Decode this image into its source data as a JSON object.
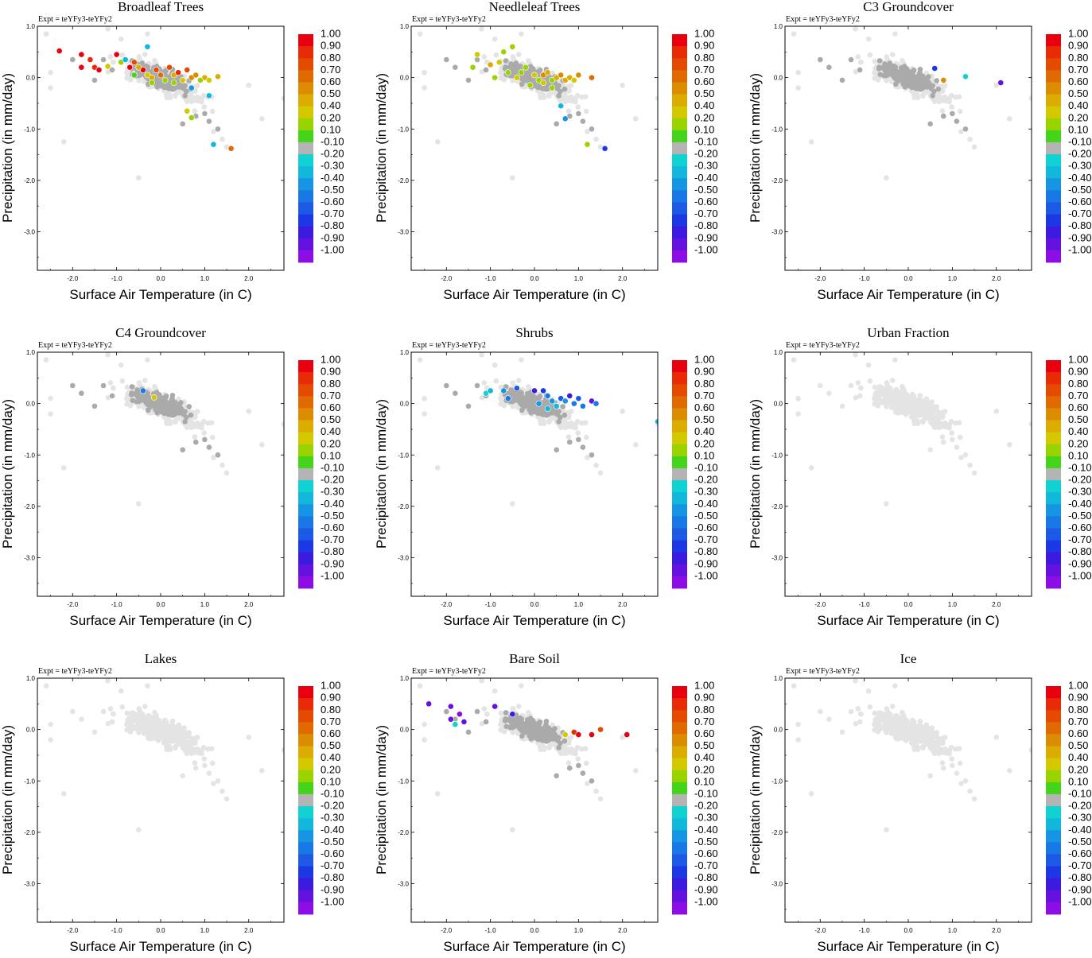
{
  "figure": {
    "expt_label": "Expt = teYFy3-teYFy2",
    "xlabel": "Surface Air Temperature (in C)",
    "ylabel": "Precipitation (in mm/day)",
    "xlim": [
      -2.8,
      2.8
    ],
    "ylim": [
      -3.75,
      1.0
    ],
    "xticks": [
      -2.0,
      -1.0,
      0.0,
      1.0,
      2.0
    ],
    "yticks": [
      1.0,
      0.0,
      -1.0,
      -2.0,
      -3.0
    ],
    "xtick_labels": [
      "-2.0",
      "-1.0",
      "0.0",
      "1.0",
      "2.0"
    ],
    "ytick_labels": [
      "1.0",
      "0.0",
      "-1.0",
      "-2.0",
      "-3.0"
    ]
  },
  "colorbar": {
    "labels": [
      "1.00",
      "0.90",
      "0.80",
      "0.70",
      "0.60",
      "0.50",
      "0.40",
      "0.20",
      "0.10",
      "-0.10",
      "-0.20",
      "-0.30",
      "-0.40",
      "-0.50",
      "-0.60",
      "-0.70",
      "-0.80",
      "-0.90",
      "-1.00"
    ],
    "colors": [
      "#e8000e",
      "#e82a07",
      "#e44a00",
      "#e06a00",
      "#dc8c00",
      "#dcac00",
      "#d4c800",
      "#9ad400",
      "#44d41a",
      "#b4b4b4",
      "#10d2d2",
      "#12b8dc",
      "#1696e2",
      "#1878e6",
      "#1c5ae6",
      "#1c38e4",
      "#3c1ae0",
      "#6412e0",
      "#8c0ee4"
    ]
  },
  "colors": {
    "background_point": "#e4e4e4",
    "mid_point": "#aaaaaa",
    "neutral_bin": "#b4b4b4"
  },
  "chart_data": [
    {
      "type": "scatter",
      "title": "Broadleaf Trees",
      "xlabel": "Surface Air Temperature (in C)",
      "ylabel": "Precipitation (in mm/day)",
      "xlim": [
        -2.8,
        2.8
      ],
      "ylim": [
        -3.75,
        1.0
      ],
      "highlighted": [
        {
          "x": -2.3,
          "y": 0.52,
          "v": 1.0
        },
        {
          "x": -1.8,
          "y": 0.45,
          "v": 1.0
        },
        {
          "x": -1.8,
          "y": 0.2,
          "v": 1.0
        },
        {
          "x": -1.6,
          "y": 0.35,
          "v": 0.9
        },
        {
          "x": -1.5,
          "y": 0.2,
          "v": 0.85
        },
        {
          "x": -1.4,
          "y": 0.15,
          "v": 1.0
        },
        {
          "x": -1.2,
          "y": 0.22,
          "v": 0.3
        },
        {
          "x": -1.0,
          "y": 0.45,
          "v": 1.0
        },
        {
          "x": -0.9,
          "y": 0.3,
          "v": 0.15
        },
        {
          "x": -0.7,
          "y": 0.2,
          "v": 1.0
        },
        {
          "x": -0.6,
          "y": 0.3,
          "v": 0.8
        },
        {
          "x": -0.4,
          "y": 0.15,
          "v": 1.0
        },
        {
          "x": -0.3,
          "y": 0.05,
          "v": 0.4
        },
        {
          "x": -0.2,
          "y": 0.0,
          "v": 0.5
        },
        {
          "x": -0.1,
          "y": 0.15,
          "v": 0.75
        },
        {
          "x": 0.0,
          "y": 0.05,
          "v": 0.65
        },
        {
          "x": 0.1,
          "y": -0.05,
          "v": 0.15
        },
        {
          "x": 0.2,
          "y": 0.2,
          "v": 0.8
        },
        {
          "x": 0.3,
          "y": 0.05,
          "v": 0.45
        },
        {
          "x": 0.4,
          "y": 0.1,
          "v": 0.85
        },
        {
          "x": 0.5,
          "y": -0.05,
          "v": 0.25
        },
        {
          "x": 0.6,
          "y": 0.15,
          "v": 0.75
        },
        {
          "x": 0.7,
          "y": 0.0,
          "v": 0.55
        },
        {
          "x": 0.8,
          "y": 0.05,
          "v": 0.6
        },
        {
          "x": 1.0,
          "y": 0.0,
          "v": 0.5
        },
        {
          "x": 1.1,
          "y": -0.05,
          "v": 0.3
        },
        {
          "x": 1.3,
          "y": 0.02,
          "v": 0.45
        },
        {
          "x": -0.5,
          "y": 0.2,
          "v": 0.5
        },
        {
          "x": -0.2,
          "y": -0.1,
          "v": 0.15
        },
        {
          "x": 0.3,
          "y": -0.1,
          "v": 0.2
        },
        {
          "x": -0.3,
          "y": 0.6,
          "v": -0.3
        },
        {
          "x": -0.8,
          "y": 0.35,
          "v": -0.25
        },
        {
          "x": 0.7,
          "y": -0.2,
          "v": -0.4
        },
        {
          "x": 1.1,
          "y": -0.35,
          "v": -0.3
        },
        {
          "x": 0.6,
          "y": -0.65,
          "v": 0.25
        },
        {
          "x": 0.7,
          "y": -0.78,
          "v": 0.15
        },
        {
          "x": 1.2,
          "y": -1.3,
          "v": -0.25
        },
        {
          "x": 1.6,
          "y": -1.38,
          "v": 0.65
        },
        {
          "x": -0.6,
          "y": 0.05,
          "v": 0.1
        },
        {
          "x": 0.9,
          "y": -0.05,
          "v": 0.12
        }
      ]
    },
    {
      "type": "scatter",
      "title": "Needleleaf Trees",
      "xlabel": "Surface Air Temperature (in C)",
      "ylabel": "Precipitation (in mm/day)",
      "xlim": [
        -2.8,
        2.8
      ],
      "ylim": [
        -3.75,
        1.0
      ],
      "highlighted": [
        {
          "x": -1.3,
          "y": 0.45,
          "v": 0.4
        },
        {
          "x": -1.4,
          "y": 0.2,
          "v": 0.15
        },
        {
          "x": -1.0,
          "y": 0.25,
          "v": 0.5
        },
        {
          "x": -0.8,
          "y": 0.3,
          "v": 0.35
        },
        {
          "x": -0.6,
          "y": 0.1,
          "v": 0.15
        },
        {
          "x": -0.4,
          "y": 0.0,
          "v": 0.3
        },
        {
          "x": -0.3,
          "y": 0.1,
          "v": 0.12
        },
        {
          "x": -0.2,
          "y": 0.2,
          "v": 0.2
        },
        {
          "x": 0.0,
          "y": 0.05,
          "v": 0.4
        },
        {
          "x": 0.1,
          "y": -0.05,
          "v": 0.15
        },
        {
          "x": 0.2,
          "y": 0.05,
          "v": 0.55
        },
        {
          "x": 0.3,
          "y": 0.1,
          "v": 0.45
        },
        {
          "x": 0.4,
          "y": -0.05,
          "v": 0.15
        },
        {
          "x": 0.5,
          "y": 0.0,
          "v": 0.5
        },
        {
          "x": 0.6,
          "y": 0.05,
          "v": 0.55
        },
        {
          "x": 0.7,
          "y": -0.05,
          "v": 0.45
        },
        {
          "x": 0.8,
          "y": 0.0,
          "v": 0.5
        },
        {
          "x": 0.9,
          "y": -0.05,
          "v": 0.4
        },
        {
          "x": 1.0,
          "y": 0.05,
          "v": 0.55
        },
        {
          "x": 1.3,
          "y": 0.0,
          "v": 0.65
        },
        {
          "x": -0.5,
          "y": 0.6,
          "v": 0.15
        },
        {
          "x": -0.7,
          "y": 0.5,
          "v": 0.2
        },
        {
          "x": -0.1,
          "y": -0.15,
          "v": 0.12
        },
        {
          "x": 0.4,
          "y": -0.2,
          "v": 0.15
        },
        {
          "x": 0.6,
          "y": -0.55,
          "v": -0.25
        },
        {
          "x": 0.7,
          "y": -0.8,
          "v": -0.4
        },
        {
          "x": 1.2,
          "y": -1.3,
          "v": 0.12
        },
        {
          "x": 1.6,
          "y": -1.38,
          "v": -0.7
        },
        {
          "x": -0.9,
          "y": 0.0,
          "v": 0.2
        },
        {
          "x": 0.2,
          "y": -0.1,
          "v": 0.3
        }
      ]
    },
    {
      "type": "scatter",
      "title": "C3 Groundcover",
      "xlabel": "Surface Air Temperature (in C)",
      "ylabel": "Precipitation (in mm/day)",
      "xlim": [
        -2.8,
        2.8
      ],
      "ylim": [
        -3.75,
        1.0
      ],
      "highlighted": [
        {
          "x": 0.6,
          "y": 0.18,
          "v": -0.7
        },
        {
          "x": 0.8,
          "y": -0.05,
          "v": 0.6
        },
        {
          "x": 1.3,
          "y": 0.02,
          "v": -0.2
        },
        {
          "x": 2.1,
          "y": -0.1,
          "v": -0.9
        }
      ]
    },
    {
      "type": "scatter",
      "title": "C4 Groundcover",
      "xlabel": "Surface Air Temperature (in C)",
      "ylabel": "Precipitation (in mm/day)",
      "xlim": [
        -2.8,
        2.8
      ],
      "ylim": [
        -3.75,
        1.0
      ],
      "highlighted": [
        {
          "x": -0.4,
          "y": 0.25,
          "v": -0.5
        },
        {
          "x": -0.15,
          "y": 0.12,
          "v": 0.3
        }
      ]
    },
    {
      "type": "scatter",
      "title": "Shrubs",
      "xlabel": "Surface Air Temperature (in C)",
      "ylabel": "Precipitation (in mm/day)",
      "xlim": [
        -2.8,
        2.8
      ],
      "ylim": [
        -3.75,
        1.0
      ],
      "highlighted": [
        {
          "x": -1.1,
          "y": 0.2,
          "v": -0.2
        },
        {
          "x": -1.0,
          "y": 0.25,
          "v": -0.3
        },
        {
          "x": -0.7,
          "y": 0.25,
          "v": -0.4
        },
        {
          "x": -0.6,
          "y": 0.1,
          "v": -0.5
        },
        {
          "x": 0.0,
          "y": 0.25,
          "v": -0.75
        },
        {
          "x": 0.2,
          "y": 0.25,
          "v": -0.65
        },
        {
          "x": 0.3,
          "y": 0.15,
          "v": -0.5
        },
        {
          "x": 0.4,
          "y": 0.05,
          "v": -0.35
        },
        {
          "x": 0.6,
          "y": 0.1,
          "v": -0.55
        },
        {
          "x": 0.7,
          "y": 0.05,
          "v": -0.4
        },
        {
          "x": 0.8,
          "y": 0.15,
          "v": -0.8
        },
        {
          "x": 0.9,
          "y": 0.0,
          "v": -0.45
        },
        {
          "x": 1.0,
          "y": 0.1,
          "v": -0.6
        },
        {
          "x": 1.3,
          "y": 0.05,
          "v": -0.85
        },
        {
          "x": 1.4,
          "y": 0.0,
          "v": -0.5
        },
        {
          "x": 0.5,
          "y": -0.05,
          "v": -0.3
        },
        {
          "x": 0.3,
          "y": -0.1,
          "v": -0.25
        },
        {
          "x": -0.4,
          "y": 0.3,
          "v": -0.6
        },
        {
          "x": 0.1,
          "y": 0.0,
          "v": -0.35
        },
        {
          "x": 1.1,
          "y": -0.05,
          "v": -0.45
        },
        {
          "x": 2.8,
          "y": -0.35,
          "v": -0.3
        }
      ]
    },
    {
      "type": "scatter",
      "title": "Urban Fraction",
      "xlabel": "Surface Air Temperature (in C)",
      "ylabel": "Precipitation (in mm/day)",
      "xlim": [
        -2.8,
        2.8
      ],
      "ylim": [
        -3.75,
        1.0
      ],
      "highlighted": []
    },
    {
      "type": "scatter",
      "title": "Lakes",
      "xlabel": "Surface Air Temperature (in C)",
      "ylabel": "Precipitation (in mm/day)",
      "xlim": [
        -2.8,
        2.8
      ],
      "ylim": [
        -3.75,
        1.0
      ],
      "highlighted": []
    },
    {
      "type": "scatter",
      "title": "Bare Soil",
      "xlabel": "Surface Air Temperature (in C)",
      "ylabel": "Precipitation (in mm/day)",
      "xlim": [
        -2.8,
        2.8
      ],
      "ylim": [
        -3.75,
        1.0
      ],
      "highlighted": [
        {
          "x": -2.4,
          "y": 0.5,
          "v": -0.9
        },
        {
          "x": -1.9,
          "y": 0.45,
          "v": -0.85
        },
        {
          "x": -1.9,
          "y": 0.2,
          "v": -0.9
        },
        {
          "x": -1.8,
          "y": 0.1,
          "v": -0.2
        },
        {
          "x": -1.7,
          "y": 0.3,
          "v": -0.95
        },
        {
          "x": -1.6,
          "y": 0.15,
          "v": -0.85
        },
        {
          "x": -0.9,
          "y": 0.45,
          "v": -0.9
        },
        {
          "x": -0.5,
          "y": 0.3,
          "v": -0.75
        },
        {
          "x": 0.9,
          "y": -0.05,
          "v": 0.9
        },
        {
          "x": 1.0,
          "y": -0.1,
          "v": 1.0
        },
        {
          "x": 0.7,
          "y": -0.1,
          "v": 0.4
        },
        {
          "x": 1.3,
          "y": -0.1,
          "v": 1.0
        },
        {
          "x": 1.5,
          "y": 0.0,
          "v": 0.8
        },
        {
          "x": 2.1,
          "y": -0.1,
          "v": 1.0
        }
      ]
    },
    {
      "type": "scatter",
      "title": "Ice",
      "xlabel": "Surface Air Temperature (in C)",
      "ylabel": "Precipitation (in mm/day)",
      "xlim": [
        -2.8,
        2.8
      ],
      "ylim": [
        -3.75,
        1.0
      ],
      "highlighted": []
    }
  ]
}
